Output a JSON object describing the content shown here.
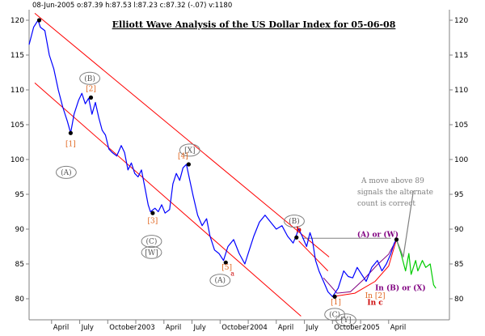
{
  "header": {
    "text": "08-Jun-2005  o:87.39 h:87.53 l:87.23 c:87.32 (-.07) v:1180"
  },
  "chart_data": {
    "type": "line",
    "title": "Elliott Wave Analysis of the US Dollar Index for 05-06-08",
    "ylim": [
      78,
      123
    ],
    "yticks": [
      80,
      85,
      90,
      95,
      100,
      105,
      110,
      115,
      120
    ],
    "xticks": [
      {
        "label": "April",
        "t": 0.2
      },
      {
        "label": "July",
        "t": 0.45
      },
      {
        "label": "October",
        "t": 0.7
      },
      {
        "label": "2003",
        "t": 0.95
      },
      {
        "label": "April",
        "t": 1.2
      },
      {
        "label": "July",
        "t": 1.45
      },
      {
        "label": "October",
        "t": 1.7
      },
      {
        "label": "2004",
        "t": 1.95
      },
      {
        "label": "April",
        "t": 2.2
      },
      {
        "label": "July",
        "t": 2.45
      },
      {
        "label": "October",
        "t": 2.7
      },
      {
        "label": "2005",
        "t": 2.95
      },
      {
        "label": "April",
        "t": 3.2
      }
    ],
    "series": [
      {
        "color": "#0000ff",
        "points": [
          [
            0.0,
            116.5
          ],
          [
            0.04,
            119.0
          ],
          [
            0.08,
            120.0
          ],
          [
            0.1,
            119.0
          ],
          [
            0.14,
            118.5
          ],
          [
            0.18,
            115.0
          ],
          [
            0.22,
            113.0
          ],
          [
            0.26,
            110.0
          ],
          [
            0.3,
            107.5
          ],
          [
            0.34,
            105.5
          ],
          [
            0.37,
            103.8
          ],
          [
            0.4,
            106.5
          ],
          [
            0.44,
            108.5
          ],
          [
            0.47,
            109.5
          ],
          [
            0.5,
            108.0
          ],
          [
            0.53,
            108.8
          ],
          [
            0.56,
            106.5
          ],
          [
            0.59,
            108.2
          ],
          [
            0.62,
            106.0
          ],
          [
            0.65,
            104.2
          ],
          [
            0.68,
            103.5
          ],
          [
            0.71,
            101.5
          ],
          [
            0.74,
            101.0
          ],
          [
            0.78,
            100.5
          ],
          [
            0.82,
            102.0
          ],
          [
            0.85,
            101.0
          ],
          [
            0.88,
            98.5
          ],
          [
            0.91,
            99.5
          ],
          [
            0.94,
            98.0
          ],
          [
            0.97,
            97.5
          ],
          [
            1.0,
            98.5
          ],
          [
            1.03,
            96.0
          ],
          [
            1.06,
            93.5
          ],
          [
            1.08,
            92.5
          ],
          [
            1.12,
            93.0
          ],
          [
            1.15,
            92.5
          ],
          [
            1.18,
            93.5
          ],
          [
            1.21,
            92.3
          ],
          [
            1.25,
            92.8
          ],
          [
            1.28,
            96.5
          ],
          [
            1.31,
            98.0
          ],
          [
            1.34,
            97.0
          ],
          [
            1.37,
            98.8
          ],
          [
            1.4,
            99.3
          ],
          [
            1.43,
            97.0
          ],
          [
            1.46,
            94.8
          ],
          [
            1.5,
            92.0
          ],
          [
            1.54,
            90.5
          ],
          [
            1.58,
            91.5
          ],
          [
            1.61,
            89.0
          ],
          [
            1.65,
            87.0
          ],
          [
            1.69,
            86.5
          ],
          [
            1.73,
            85.5
          ],
          [
            1.77,
            87.5
          ],
          [
            1.82,
            88.5
          ],
          [
            1.87,
            86.5
          ],
          [
            1.92,
            85.0
          ],
          [
            1.96,
            87.0
          ],
          [
            2.0,
            89.0
          ],
          [
            2.05,
            91.0
          ],
          [
            2.1,
            92.0
          ],
          [
            2.15,
            91.0
          ],
          [
            2.2,
            90.0
          ],
          [
            2.25,
            90.5
          ],
          [
            2.3,
            89.0
          ],
          [
            2.35,
            88.0
          ],
          [
            2.4,
            90.0
          ],
          [
            2.43,
            89.0
          ],
          [
            2.47,
            87.5
          ],
          [
            2.5,
            89.5
          ],
          [
            2.52,
            88.5
          ],
          [
            2.55,
            85.5
          ],
          [
            2.58,
            84.0
          ],
          [
            2.62,
            82.5
          ],
          [
            2.66,
            81.0
          ],
          [
            2.7,
            80.3
          ],
          [
            2.75,
            81.5
          ],
          [
            2.8,
            84.0
          ],
          [
            2.84,
            83.2
          ],
          [
            2.88,
            83.0
          ],
          [
            2.92,
            84.5
          ],
          [
            2.96,
            83.5
          ],
          [
            3.0,
            82.5
          ],
          [
            3.05,
            84.5
          ],
          [
            3.1,
            85.5
          ],
          [
            3.14,
            84.0
          ],
          [
            3.18,
            85.0
          ],
          [
            3.22,
            86.5
          ],
          [
            3.25,
            88.0
          ],
          [
            3.27,
            88.5
          ]
        ]
      },
      {
        "color": "#00cc00",
        "points": [
          [
            3.27,
            88.5
          ],
          [
            3.31,
            86.5
          ],
          [
            3.35,
            84.0
          ],
          [
            3.38,
            86.5
          ],
          [
            3.4,
            83.5
          ],
          [
            3.44,
            85.5
          ],
          [
            3.46,
            84.0
          ],
          [
            3.5,
            85.5
          ],
          [
            3.53,
            84.5
          ],
          [
            3.57,
            85.0
          ],
          [
            3.6,
            82.0
          ],
          [
            3.62,
            81.5
          ]
        ]
      },
      {
        "color": "#808080",
        "points": [
          [
            3.27,
            88.5
          ],
          [
            3.33,
            86.0
          ],
          [
            3.42,
            95.5
          ]
        ]
      }
    ],
    "channels": [
      {
        "color": "#ff0000",
        "points": [
          [
            0.05,
            121.0
          ],
          [
            2.67,
            86.0
          ]
        ]
      },
      {
        "color": "#ff0000",
        "points": [
          [
            0.05,
            111.0
          ],
          [
            2.42,
            77.5
          ]
        ]
      },
      {
        "color": "#ff0000",
        "points": [
          [
            2.4,
            88.3
          ],
          [
            2.66,
            84.0
          ]
        ]
      }
    ],
    "arcs": [
      {
        "color": "#800080",
        "points": [
          [
            2.62,
            83.0
          ],
          [
            2.74,
            80.8
          ],
          [
            2.86,
            81.0
          ],
          [
            2.98,
            82.8
          ],
          [
            3.1,
            84.9
          ],
          [
            3.2,
            86.4
          ],
          [
            3.27,
            88.5
          ]
        ]
      },
      {
        "color": "#ff0000",
        "points": [
          [
            2.7,
            80.3
          ],
          [
            2.9,
            80.8
          ],
          [
            3.08,
            82.5
          ],
          [
            3.2,
            84.7
          ],
          [
            3.27,
            88.5
          ]
        ]
      }
    ],
    "pivots": [
      [
        0.09,
        120.0
      ],
      [
        0.37,
        103.8
      ],
      [
        0.55,
        108.9
      ],
      [
        1.1,
        92.3
      ],
      [
        1.42,
        99.3
      ],
      [
        1.75,
        85.2
      ],
      [
        2.38,
        88.8
      ],
      [
        2.72,
        80.3
      ],
      [
        3.27,
        88.5
      ]
    ],
    "reference_lines": [
      {
        "color": "#808080",
        "points": [
          [
            2.43,
            88.7
          ],
          [
            3.22,
            88.7
          ]
        ]
      }
    ],
    "annotations": [
      {
        "text": "(B)",
        "t": 0.54,
        "y": 111.3,
        "style": "circled"
      },
      {
        "text": "[2]",
        "t": 0.55,
        "y": 109.8,
        "style": "orange"
      },
      {
        "text": "[1]",
        "t": 0.37,
        "y": 101.9,
        "style": "orange"
      },
      {
        "text": "(A)",
        "t": 0.33,
        "y": 97.8,
        "style": "circled"
      },
      {
        "text": "[X]",
        "t": 1.43,
        "y": 101.0,
        "style": "circled"
      },
      {
        "text": "[4]",
        "t": 1.37,
        "y": 100.2,
        "style": "orange"
      },
      {
        "text": "[3]",
        "t": 1.1,
        "y": 90.9,
        "style": "orange"
      },
      {
        "text": "(C)",
        "t": 1.09,
        "y": 87.9,
        "style": "circled"
      },
      {
        "text": "[W]",
        "t": 1.09,
        "y": 86.3,
        "style": "circled"
      },
      {
        "text": "[5]",
        "t": 1.76,
        "y": 84.2,
        "style": "orange"
      },
      {
        "text": "(A)",
        "t": 1.7,
        "y": 82.3,
        "style": "circled"
      },
      {
        "text": "a",
        "t": 1.81,
        "y": 83.3,
        "style": "red-small"
      },
      {
        "text": "(B)",
        "t": 2.36,
        "y": 90.8,
        "style": "circled"
      },
      {
        "text": "b",
        "t": 2.4,
        "y": 89.6,
        "style": "red-bold"
      },
      {
        "text": "[1]",
        "t": 2.73,
        "y": 79.2,
        "style": "orange"
      },
      {
        "text": "(C)",
        "t": 2.72,
        "y": 77.4,
        "style": "circled"
      },
      {
        "text": "[Y]",
        "t": 2.82,
        "y": 76.6,
        "style": "circled"
      },
      {
        "text": "(A) or (W)",
        "t": 2.92,
        "y": 88.9,
        "style": "purple"
      },
      {
        "text": "In (B) or (X)",
        "t": 3.08,
        "y": 81.2,
        "style": "purple"
      },
      {
        "text": "In [2]",
        "t": 3.08,
        "y": 80.1,
        "style": "orange"
      },
      {
        "text": "In c",
        "t": 3.08,
        "y": 79.1,
        "style": "red-bold"
      }
    ],
    "note_lines": [
      "A move above 89",
      "signals the alternate",
      "count is correct"
    ]
  }
}
